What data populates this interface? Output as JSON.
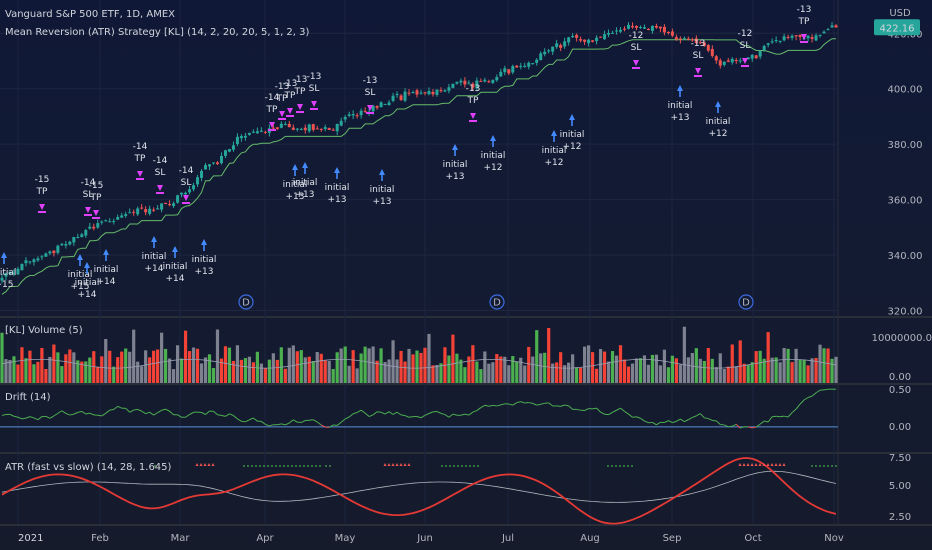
{
  "header": {
    "symbol": "Vanguard S&P 500 ETF, 1D, AMEX",
    "strategy": "Mean Reversion (ATR) Strategy [KL] (14, 2, 20, 20, 5, 1, 2, 3)"
  },
  "price_axis": {
    "unit": "USD",
    "ticks": [
      "420.00",
      "400.00",
      "380.00",
      "360.00",
      "340.00",
      "320.00"
    ],
    "last_price": "422.16"
  },
  "volume_panel": {
    "title": "[KL] Volume (5)",
    "ticks": [
      "10000000.00",
      "0.00"
    ]
  },
  "drift_panel": {
    "title": "Drift (14)",
    "ticks": [
      "0.50",
      "0.00"
    ]
  },
  "atr_panel": {
    "title": "ATR (fast vs slow) (14, 28, 1.645)",
    "ticks": [
      "7.50",
      "5.00",
      "2.50"
    ]
  },
  "time_axis": [
    "2021",
    "Feb",
    "Mar",
    "Apr",
    "May",
    "Jun",
    "Jul",
    "Aug",
    "Sep",
    "Oct",
    "Nov"
  ],
  "dividend_marker": "D",
  "annotations": [
    {
      "t": "-15",
      "b": "TP"
    },
    {
      "t": "-14",
      "b": "SL"
    },
    {
      "t": "-15",
      "b": "TP"
    },
    {
      "t": "-14",
      "b": "TP"
    },
    {
      "t": "-14",
      "b": "SL"
    },
    {
      "t": "-14",
      "b": "SL"
    },
    {
      "t": "-14",
      "b": "TP"
    },
    {
      "t": "-13",
      "b": "TP"
    },
    {
      "t": "-13",
      "b": "TP"
    },
    {
      "t": "-13",
      "b": "TP"
    },
    {
      "t": "-13",
      "b": "SL"
    },
    {
      "t": "-13",
      "b": "SL"
    },
    {
      "t": "-13",
      "b": "TP"
    },
    {
      "t": "-12",
      "b": "SL"
    },
    {
      "t": "-13",
      "b": "SL"
    },
    {
      "t": "-12",
      "b": "SL"
    },
    {
      "t": "-13",
      "b": "TP"
    },
    {
      "t": "initial",
      "b": "+15"
    },
    {
      "t": "initial",
      "b": "+15"
    },
    {
      "t": "initial",
      "b": "+14"
    },
    {
      "t": "initial",
      "b": "+14"
    },
    {
      "t": "initial",
      "b": "+14"
    },
    {
      "t": "initial",
      "b": "+14"
    },
    {
      "t": "initial",
      "b": "+13"
    },
    {
      "t": "initial",
      "b": "+13"
    },
    {
      "t": "initial",
      "b": "+13"
    },
    {
      "t": "initial",
      "b": "+13"
    },
    {
      "t": "initial",
      "b": "+13"
    },
    {
      "t": "initial",
      "b": "+13"
    },
    {
      "t": "initial",
      "b": "+12"
    },
    {
      "t": "initial",
      "b": "+12"
    },
    {
      "t": "initial",
      "b": "+12"
    },
    {
      "t": "initial",
      "b": "+13"
    },
    {
      "t": "initial",
      "b": "+12"
    }
  ],
  "chart_data": [
    {
      "type": "candlestick",
      "ylim": [
        318,
        432
      ],
      "start_close": 331,
      "end_close": 422.16,
      "trend_waypoints": [
        [
          0,
          332
        ],
        [
          25,
          352
        ],
        [
          45,
          362
        ],
        [
          60,
          384
        ],
        [
          80,
          386
        ],
        [
          100,
          398
        ],
        [
          120,
          403
        ],
        [
          140,
          416
        ],
        [
          160,
          423
        ],
        [
          175,
          415
        ],
        [
          180,
          409
        ],
        [
          200,
          419
        ],
        [
          208,
          422
        ]
      ]
    },
    {
      "type": "bar",
      "name": "volume",
      "ylim": [
        0,
        12000000
      ]
    },
    {
      "type": "line",
      "name": "drift",
      "ylim": [
        -0.3,
        0.5
      ]
    },
    {
      "type": "line",
      "name": "atr",
      "series": [
        {
          "name": "fast"
        },
        {
          "name": "slow"
        }
      ],
      "ylim": [
        2,
        7.5
      ]
    }
  ],
  "colors": {
    "up": "#26a69a",
    "down": "#ef5350",
    "vol_up": "#4caf50",
    "vol_down": "#f44336",
    "vol_neutral": "#7e8290",
    "marker_sell": "#e040fb",
    "marker_buy": "#448aff",
    "stop_line": "#66bb6a"
  }
}
